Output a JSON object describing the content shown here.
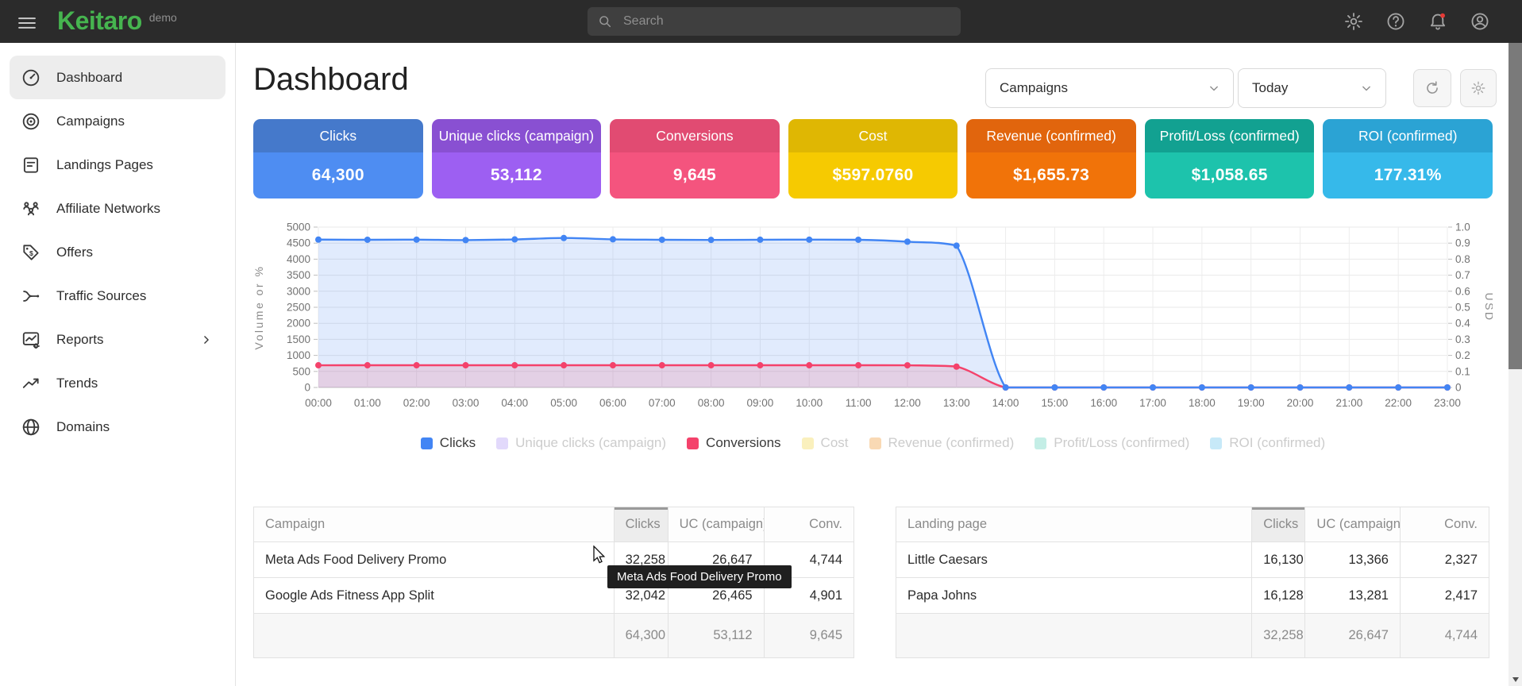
{
  "topbar": {
    "logo": "Keitaro",
    "logo_badge": "demo",
    "search_placeholder": "Search",
    "icons": [
      "settings-icon",
      "help-icon",
      "notifications-icon",
      "account-icon"
    ],
    "notification_dot_color": "#e53935"
  },
  "sidebar": {
    "items": [
      {
        "label": "Dashboard",
        "icon": "dashboard-icon",
        "active": true
      },
      {
        "label": "Campaigns",
        "icon": "campaigns-icon"
      },
      {
        "label": "Landings Pages",
        "icon": "landings-icon"
      },
      {
        "label": "Affiliate Networks",
        "icon": "affiliate-networks-icon"
      },
      {
        "label": "Offers",
        "icon": "offers-icon"
      },
      {
        "label": "Traffic Sources",
        "icon": "traffic-sources-icon"
      },
      {
        "label": "Reports",
        "icon": "reports-icon",
        "chevron": true
      },
      {
        "label": "Trends",
        "icon": "trends-icon"
      },
      {
        "label": "Domains",
        "icon": "domains-icon"
      }
    ]
  },
  "header": {
    "title": "Dashboard",
    "campaign_filter": "Campaigns",
    "date_filter": "Today"
  },
  "stat_cards": [
    {
      "label": "Clicks",
      "value": "64,300",
      "header_color": "#4579cb",
      "body_color": "#4e8df2"
    },
    {
      "label": "Unique clicks (campaign)",
      "value": "53,112",
      "header_color": "#8950d2",
      "body_color": "#9d5ff2"
    },
    {
      "label": "Conversions",
      "value": "9,645",
      "header_color": "#e14b72",
      "body_color": "#f4547e"
    },
    {
      "label": "Cost",
      "value": "$597.0760",
      "header_color": "#dfb703",
      "body_color": "#f6ca01"
    },
    {
      "label": "Revenue (confirmed)",
      "value": "$1,655.73",
      "header_color": "#e1650d",
      "body_color": "#f17309"
    },
    {
      "label": "Profit/Loss (confirmed)",
      "value": "$1,058.65",
      "header_color": "#12a191",
      "body_color": "#1dc3ac"
    },
    {
      "label": "ROI (confirmed)",
      "value": "177.31%",
      "header_color": "#2ba3d4",
      "body_color": "#36b9ea"
    }
  ],
  "chart_data": {
    "type": "area",
    "x": [
      "00:00",
      "01:00",
      "02:00",
      "03:00",
      "04:00",
      "05:00",
      "06:00",
      "07:00",
      "08:00",
      "09:00",
      "10:00",
      "11:00",
      "12:00",
      "13:00",
      "14:00",
      "15:00",
      "16:00",
      "17:00",
      "18:00",
      "19:00",
      "20:00",
      "21:00",
      "22:00",
      "23:00"
    ],
    "series": [
      {
        "name": "Clicks",
        "color": "#4285f4",
        "fill": "rgba(66,133,244,0.16)",
        "axis": "left",
        "values": [
          4610,
          4605,
          4608,
          4595,
          4615,
          4660,
          4618,
          4605,
          4600,
          4606,
          4608,
          4605,
          4545,
          4420,
          0,
          0,
          0,
          0,
          0,
          0,
          0,
          0,
          0,
          0
        ]
      },
      {
        "name": "Conversions",
        "color": "#f4426b",
        "fill": "rgba(244,66,107,0.16)",
        "axis": "left",
        "values": [
          692,
          692,
          692,
          692,
          692,
          692,
          692,
          692,
          692,
          692,
          692,
          692,
          691,
          650,
          0,
          0,
          0,
          0,
          0,
          0,
          0,
          0,
          0,
          0
        ]
      }
    ],
    "y_left": {
      "label": "Volume or %",
      "min": 0,
      "max": 5000,
      "step": 500
    },
    "y_right": {
      "label": "USD",
      "min": 0,
      "max": 1.0,
      "step": 0.1
    },
    "grid": true,
    "legend_position": "bottom",
    "legend": [
      {
        "label": "Clicks",
        "color": "#4285f4",
        "active": true
      },
      {
        "label": "Unique clicks (campaign)",
        "color": "#e2d9fb",
        "active": false
      },
      {
        "label": "Conversions",
        "color": "#f4426b",
        "active": true
      },
      {
        "label": "Cost",
        "color": "#faf0bd",
        "active": false
      },
      {
        "label": "Revenue (confirmed)",
        "color": "#f9d9b4",
        "active": false
      },
      {
        "label": "Profit/Loss (confirmed)",
        "color": "#c4eee6",
        "active": false
      },
      {
        "label": "ROI (confirmed)",
        "color": "#c7e9f8",
        "active": false
      }
    ]
  },
  "tables": [
    {
      "key": "campaigns",
      "columns": [
        "Campaign",
        "Clicks",
        "UC (campaign)",
        "Conv."
      ],
      "sorted_col": 1,
      "rows": [
        [
          "Meta Ads Food Delivery Promo",
          "32,258",
          "26,647",
          "4,744"
        ],
        [
          "Google Ads Fitness App Split",
          "32,042",
          "26,465",
          "4,901"
        ]
      ],
      "totals": [
        "",
        "64,300",
        "53,112",
        "9,645"
      ]
    },
    {
      "key": "landings",
      "columns": [
        "Landing page",
        "Clicks",
        "UC (campaign)",
        "Conv."
      ],
      "sorted_col": 1,
      "rows": [
        [
          "Little Caesars",
          "16,130",
          "13,366",
          "2,327"
        ],
        [
          "Papa Johns",
          "16,128",
          "13,281",
          "2,417"
        ]
      ],
      "totals": [
        "",
        "32,258",
        "26,647",
        "4,744"
      ]
    }
  ],
  "tooltip": {
    "text": "Meta Ads Food Delivery Promo"
  }
}
